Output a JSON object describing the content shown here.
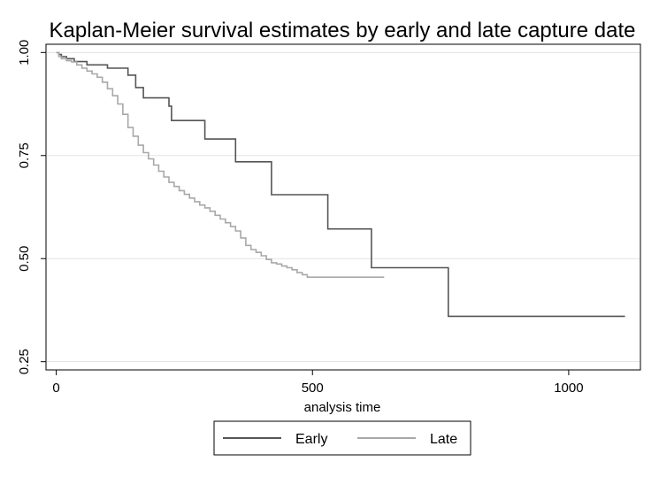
{
  "chart_data": {
    "type": "line",
    "title": "Kaplan-Meier survival estimates by early and late capture date",
    "xlabel": "analysis time",
    "ylabel": "",
    "xlim": [
      -20,
      1140
    ],
    "ylim": [
      0.23,
      1.02
    ],
    "x_ticks": [
      0,
      500,
      1000
    ],
    "x_tick_labels": [
      "0",
      "500",
      "1000"
    ],
    "y_ticks": [
      0.25,
      0.5,
      0.75,
      1.0
    ],
    "y_tick_labels": [
      "0.25",
      "0.50",
      "0.75",
      "1.00"
    ],
    "grid": true,
    "legend_position": "bottom",
    "series": [
      {
        "name": "Early",
        "color": "#555555",
        "step": true,
        "x": [
          0,
          5,
          10,
          20,
          35,
          60,
          100,
          140,
          155,
          170,
          220,
          225,
          290,
          350,
          420,
          530,
          615,
          765,
          1110
        ],
        "y": [
          1.0,
          0.995,
          0.99,
          0.985,
          0.978,
          0.97,
          0.962,
          0.945,
          0.915,
          0.89,
          0.87,
          0.835,
          0.79,
          0.735,
          0.655,
          0.572,
          0.478,
          0.36,
          0.36
        ]
      },
      {
        "name": "Late",
        "color": "#a8a8a8",
        "step": true,
        "x": [
          0,
          5,
          10,
          20,
          30,
          40,
          50,
          60,
          70,
          80,
          90,
          100,
          110,
          120,
          130,
          140,
          150,
          160,
          170,
          180,
          190,
          200,
          210,
          220,
          230,
          240,
          250,
          260,
          270,
          280,
          290,
          300,
          310,
          320,
          330,
          340,
          350,
          360,
          370,
          380,
          390,
          400,
          410,
          420,
          430,
          440,
          450,
          460,
          470,
          480,
          490,
          500,
          520,
          540,
          560,
          580,
          600,
          620,
          640
        ],
        "y": [
          1.0,
          0.99,
          0.985,
          0.98,
          0.977,
          0.97,
          0.962,
          0.955,
          0.948,
          0.94,
          0.928,
          0.912,
          0.895,
          0.875,
          0.85,
          0.818,
          0.797,
          0.775,
          0.757,
          0.742,
          0.727,
          0.712,
          0.698,
          0.685,
          0.675,
          0.665,
          0.656,
          0.647,
          0.638,
          0.63,
          0.623,
          0.615,
          0.605,
          0.596,
          0.587,
          0.578,
          0.567,
          0.55,
          0.532,
          0.522,
          0.515,
          0.507,
          0.498,
          0.49,
          0.487,
          0.482,
          0.478,
          0.473,
          0.466,
          0.461,
          0.455,
          0.455,
          0.455,
          0.455,
          0.455,
          0.455,
          0.455,
          0.455,
          0.455
        ]
      }
    ]
  }
}
